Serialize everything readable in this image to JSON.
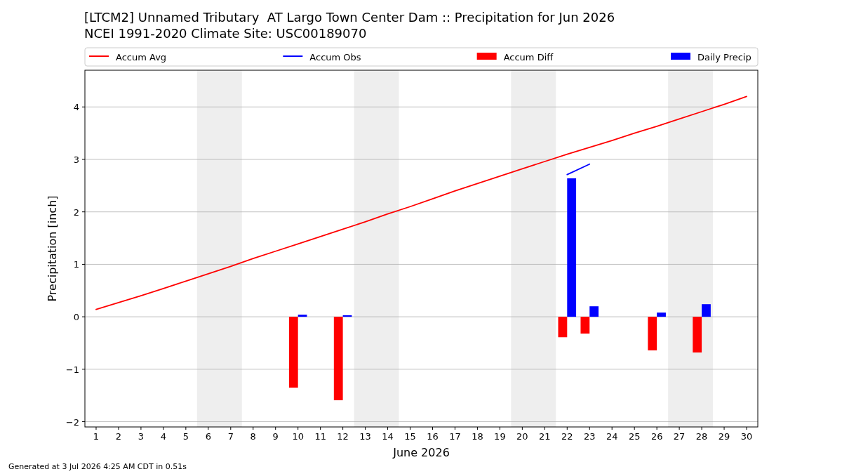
{
  "chart_data": {
    "type": "bar",
    "title": "[LTCM2] Unnamed Tributary  AT Largo Town Center Dam :: Precipitation for Jun 2026",
    "subtitle": "NCEI 1991-2020 Climate Site: USC00189070",
    "xlabel": "June 2026",
    "ylabel": "Precipitation [inch]",
    "annotations": [
      "Generated at 3 Jul 2026 4:25 AM CDT in 0.51s"
    ],
    "xlim": [
      0.5,
      30.5
    ],
    "xticks": [
      1,
      2,
      3,
      4,
      5,
      6,
      7,
      8,
      9,
      10,
      11,
      12,
      13,
      14,
      15,
      16,
      17,
      18,
      19,
      20,
      21,
      22,
      23,
      24,
      25,
      26,
      27,
      28,
      29,
      30
    ],
    "ylim": [
      -2.1,
      4.7
    ],
    "yticks": [
      {
        "value": -2,
        "label": "−2"
      },
      {
        "value": -1,
        "label": "−1"
      },
      0,
      1,
      2,
      3,
      4
    ],
    "grid": "y",
    "legend": "top",
    "bands": [
      {
        "axis": "x",
        "from": 5.5,
        "to": 7.5,
        "color": "#eeeeee"
      },
      {
        "axis": "x",
        "from": 12.5,
        "to": 14.5,
        "color": "#eeeeee"
      },
      {
        "axis": "x",
        "from": 19.5,
        "to": 21.5,
        "color": "#eeeeee"
      },
      {
        "axis": "x",
        "from": 26.5,
        "to": 28.5,
        "color": "#eeeeee"
      }
    ],
    "series": [
      {
        "name": "Accum Avg",
        "type": "line",
        "color": "#ff0000",
        "x": [
          1,
          2,
          3,
          4,
          5,
          6,
          7,
          8,
          9,
          10,
          11,
          12,
          13,
          14,
          15,
          16,
          17,
          18,
          19,
          20,
          21,
          22,
          23,
          24,
          25,
          26,
          27,
          28,
          29,
          30
        ],
        "values": [
          0.14,
          0.27,
          0.4,
          0.54,
          0.68,
          0.82,
          0.96,
          1.11,
          1.25,
          1.39,
          1.53,
          1.67,
          1.81,
          1.96,
          2.1,
          2.25,
          2.4,
          2.54,
          2.68,
          2.82,
          2.96,
          3.1,
          3.23,
          3.36,
          3.5,
          3.63,
          3.77,
          3.91,
          4.05,
          4.2
        ]
      },
      {
        "name": "Accum Obs",
        "type": "line",
        "color": "#0000ff",
        "x": [
          22,
          23
        ],
        "values": [
          2.71,
          2.91
        ]
      },
      {
        "name": "Accum Diff",
        "color": "#ff0000",
        "x": [
          10,
          12,
          22,
          23,
          26,
          28
        ],
        "values": [
          -1.35,
          -1.59,
          -0.39,
          -0.32,
          -0.64,
          -0.68
        ]
      },
      {
        "name": "Daily Precip",
        "color": "#0000ff",
        "x": [
          10,
          12,
          22,
          23,
          26,
          28
        ],
        "values": [
          0.04,
          0.03,
          2.64,
          0.2,
          0.08,
          0.24
        ]
      }
    ]
  }
}
